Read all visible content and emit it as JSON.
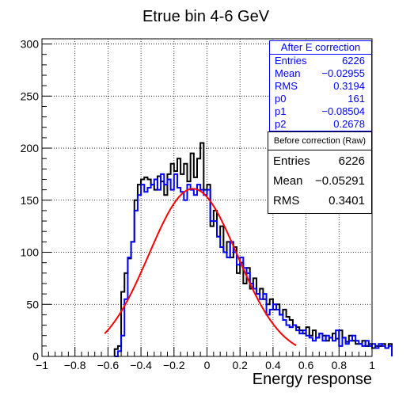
{
  "chart_data": {
    "type": "histogram",
    "title": "Etrue bin 4-6 GeV",
    "xlabel": "Energy response",
    "ylabel": "",
    "xlim": [
      -1,
      1
    ],
    "ylim": [
      0,
      305
    ],
    "xticks": [
      -1,
      -0.8,
      -0.6,
      -0.4,
      -0.2,
      0,
      0.2,
      0.4,
      0.6,
      0.8,
      1
    ],
    "xtick_labels": [
      "−1",
      "−0.8",
      "−0.6",
      "−0.4",
      "−0.2",
      "0",
      "0.2",
      "0.4",
      "0.6",
      "0.8",
      "1"
    ],
    "yticks": [
      0,
      50,
      100,
      150,
      200,
      250,
      300
    ],
    "ytick_labels": [
      "0",
      "50",
      "100",
      "150",
      "200",
      "250",
      "300"
    ],
    "grid": true,
    "bin_width": 0.02,
    "series": [
      {
        "name": "Before correction (Raw)",
        "color": "#000000",
        "bin_start": -0.56,
        "values": [
          7,
          10,
          62,
          80,
          94,
          110,
          150,
          165,
          170,
          172,
          170,
          165,
          160,
          173,
          168,
          155,
          175,
          185,
          178,
          190,
          175,
          185,
          168,
          195,
          172,
          190,
          205,
          160,
          165,
          125,
          140,
          115,
          125,
          100,
          110,
          95,
          105,
          80,
          90,
          70,
          85,
          65,
          75,
          60,
          65,
          55,
          50,
          55,
          45,
          50,
          40,
          45,
          38,
          35,
          30,
          28,
          25,
          22,
          28,
          20,
          25,
          18,
          22,
          20,
          15,
          18,
          22,
          17,
          25,
          18,
          14,
          20,
          15,
          12,
          12,
          15,
          10,
          12,
          8,
          10,
          10,
          12,
          8,
          12
        ]
      },
      {
        "name": "After E correction",
        "color": "#0000ff",
        "bin_start": -0.56,
        "values": [
          0,
          5,
          20,
          55,
          95,
          110,
          140,
          155,
          165,
          158,
          162,
          165,
          170,
          160,
          175,
          165,
          170,
          160,
          175,
          162,
          158,
          150,
          165,
          160,
          155,
          165,
          160,
          155,
          160,
          130,
          130,
          115,
          105,
          100,
          95,
          110,
          100,
          88,
          95,
          85,
          80,
          70,
          65,
          60,
          55,
          60,
          40,
          45,
          50,
          45,
          40,
          35,
          30,
          28,
          30,
          25,
          22,
          25,
          20,
          18,
          15,
          18,
          22,
          15,
          20,
          18,
          15,
          25,
          10,
          18,
          12,
          15,
          20,
          15,
          12,
          10,
          15,
          10,
          12,
          8,
          12,
          10,
          8,
          10
        ]
      },
      {
        "name": "fit",
        "type": "line",
        "color": "#ff0000",
        "function": "p0*exp(-0.5*((x-p1)/p2)^2)",
        "params": {
          "p0": 161,
          "p1": -0.08504,
          "p2": 0.2678
        },
        "xrange": [
          -0.62,
          0.54
        ]
      }
    ],
    "stats_after": {
      "title": "After E correction",
      "rows": [
        {
          "k": "Entries",
          "v": "6226"
        },
        {
          "k": "Mean",
          "v": "−0.02955"
        },
        {
          "k": "RMS",
          "v": "0.3194"
        },
        {
          "k": "p0",
          "v": "161"
        },
        {
          "k": "p1",
          "v": "−0.08504"
        },
        {
          "k": "p2",
          "v": "0.2678"
        }
      ]
    },
    "stats_before": {
      "title": "Before correction (Raw)",
      "rows": [
        {
          "k": "Entries",
          "v": "6226"
        },
        {
          "k": "Mean",
          "v": "−0.05291"
        },
        {
          "k": "RMS",
          "v": "0.3401"
        }
      ]
    }
  }
}
